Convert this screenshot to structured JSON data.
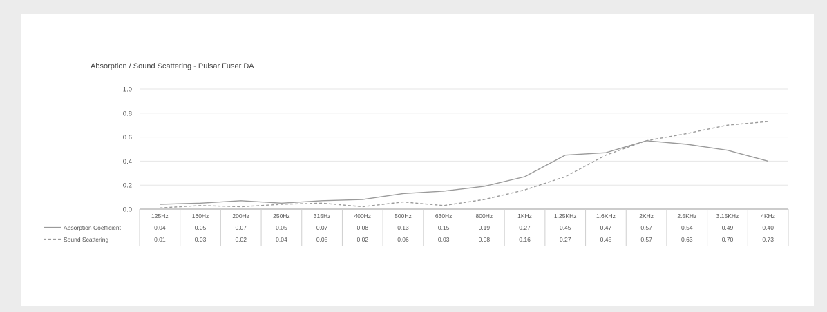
{
  "chart_data": {
    "type": "line",
    "title": "Absorption / Sound Scattering - Pulsar Fuser  DA",
    "categories": [
      "125Hz",
      "160Hz",
      "200Hz",
      "250Hz",
      "315Hz",
      "400Hz",
      "500Hz",
      "630Hz",
      "800Hz",
      "1KHz",
      "1.25KHz",
      "1.6KHz",
      "2KHz",
      "2.5KHz",
      "3.15KHz",
      "4KHz"
    ],
    "ylim": [
      0,
      1.0
    ],
    "yticks": [
      "0.0",
      "0.2",
      "0.4",
      "0.6",
      "0.8",
      "1.0"
    ],
    "grid": true,
    "legend_position": "bottom-left data table",
    "series": [
      {
        "name": "Absorption Coefficient",
        "style": "solid",
        "color": "#9a9a9a",
        "labels": [
          "0.04",
          "0.05",
          "0.07",
          "0.05",
          "0.07",
          "0.08",
          "0.13",
          "0.15",
          "0.19",
          "0.27",
          "0.45",
          "0.47",
          "0.57",
          "0.54",
          "0.49",
          "0.40"
        ],
        "values": [
          0.04,
          0.05,
          0.07,
          0.05,
          0.07,
          0.08,
          0.13,
          0.15,
          0.19,
          0.27,
          0.45,
          0.47,
          0.57,
          0.54,
          0.49,
          0.4
        ]
      },
      {
        "name": "Sound Scattering",
        "style": "dashed",
        "color": "#9a9a9a",
        "labels": [
          "0.01",
          "0.03",
          "0.02",
          "0.04",
          "0.05",
          "0.02",
          "0.06",
          "0.03",
          "0.08",
          "0.16",
          "0.27",
          "0.45",
          "0.57",
          "0.63",
          "0.70",
          "0.73"
        ],
        "values": [
          0.01,
          0.03,
          0.02,
          0.04,
          0.05,
          0.02,
          0.06,
          0.03,
          0.08,
          0.16,
          0.27,
          0.45,
          0.57,
          0.63,
          0.7,
          0.73
        ]
      }
    ]
  }
}
